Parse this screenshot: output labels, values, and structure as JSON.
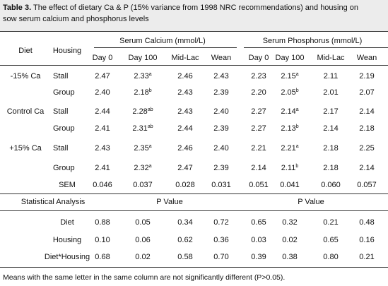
{
  "caption": {
    "label": "Table 3.",
    "text": "The effect of dietary Ca & P  (15% variance from 1998 NRC recommendations) and housing on sow serum calcium and phosphorus levels"
  },
  "header": {
    "diet": "Diet",
    "housing": "Housing",
    "groups": [
      "Serum Calcium (mmol/L)",
      "Serum Phosphorus (mmol/L)"
    ],
    "days": [
      "Day 0",
      "Day 100",
      "Mid-Lac",
      "Wean",
      "Day 0",
      "Day 100",
      "Mid-Lac",
      "Wean"
    ]
  },
  "rows": [
    {
      "diet": "-15% Ca",
      "housing": "Stall",
      "cells": [
        {
          "v": "2.47"
        },
        {
          "v": "2.33",
          "sup": "a"
        },
        {
          "v": "2.46"
        },
        {
          "v": "2.43"
        },
        {
          "v": "2.23"
        },
        {
          "v": "2.15",
          "sup": "a"
        },
        {
          "v": "2.11"
        },
        {
          "v": "2.19"
        }
      ]
    },
    {
      "housing": "Group",
      "cells": [
        {
          "v": "2.40"
        },
        {
          "v": "2.18",
          "sup": "b"
        },
        {
          "v": "2.43"
        },
        {
          "v": "2.39"
        },
        {
          "v": "2.20"
        },
        {
          "v": "2.05",
          "sup": "b"
        },
        {
          "v": "2.01"
        },
        {
          "v": "2.07"
        }
      ]
    },
    {
      "diet": "Control Ca",
      "housing": "Stall",
      "cells": [
        {
          "v": "2.44"
        },
        {
          "v": "2.28",
          "sup": "ab"
        },
        {
          "v": "2.43"
        },
        {
          "v": "2.40"
        },
        {
          "v": "2.27"
        },
        {
          "v": "2.14",
          "sup": "a"
        },
        {
          "v": "2.17"
        },
        {
          "v": "2.14"
        }
      ]
    },
    {
      "housing": "Group",
      "cells": [
        {
          "v": "2.41"
        },
        {
          "v": "2.31",
          "sup": "ab"
        },
        {
          "v": "2.44"
        },
        {
          "v": "2.39"
        },
        {
          "v": "2.27"
        },
        {
          "v": "2.13",
          "sup": "b"
        },
        {
          "v": "2.14"
        },
        {
          "v": "2.18"
        }
      ]
    },
    {
      "diet": "+15% Ca",
      "housing": "Stall",
      "cells": [
        {
          "v": "2.43"
        },
        {
          "v": "2.35",
          "sup": "a"
        },
        {
          "v": "2.46"
        },
        {
          "v": "2.40"
        },
        {
          "v": "2.21"
        },
        {
          "v": "2.21",
          "sup": "a"
        },
        {
          "v": "2.18"
        },
        {
          "v": "2.25"
        }
      ]
    },
    {
      "housing": "Group",
      "cells": [
        {
          "v": "2.41"
        },
        {
          "v": "2.32",
          "sup": "a"
        },
        {
          "v": "2.47"
        },
        {
          "v": "2.39"
        },
        {
          "v": "2.14"
        },
        {
          "v": "2.11",
          "sup": "b"
        },
        {
          "v": "2.18"
        },
        {
          "v": "2.14"
        }
      ]
    }
  ],
  "sem": {
    "label": "SEM",
    "values": [
      "0.046",
      "0.037",
      "0.028",
      "0.031",
      "0.051",
      "0.041",
      "0.060",
      "0.057"
    ]
  },
  "stats": {
    "label": "Statistical Analysis",
    "p_value": [
      "P Value",
      "P Value"
    ]
  },
  "stats_rows": [
    {
      "label": "Diet",
      "values": [
        "0.88",
        "0.05",
        "0.34",
        "0.72",
        "0.65",
        "0.32",
        "0.21",
        "0.48"
      ]
    },
    {
      "label": "Housing",
      "values": [
        "0.10",
        "0.06",
        "0.62",
        "0.36",
        "0.03",
        "0.02",
        "0.65",
        "0.16"
      ]
    },
    {
      "label": "Diet*Housing",
      "values": [
        "0.68",
        "0.02",
        "0.58",
        "0.70",
        "0.39",
        "0.38",
        "0.80",
        "0.21"
      ]
    }
  ],
  "footnote": "Means with the same letter in the same column are not significantly different  (P>0.05)."
}
